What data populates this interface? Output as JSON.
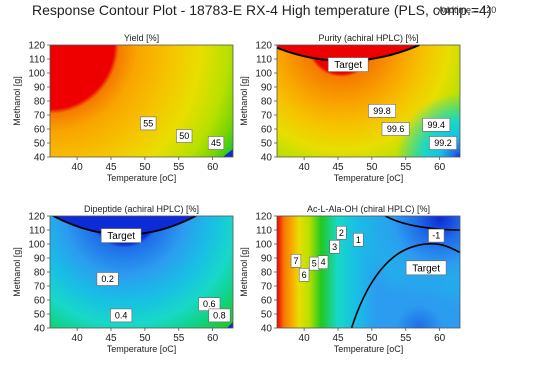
{
  "header": {
    "title": "Response Contour Plot - 18783-E RX-4 High temperature (PLS, comp.=4)",
    "annotation": "Addtime = 120"
  },
  "colors": {
    "red": "#ee0000",
    "orange": "#f57a00",
    "orange_light": "#f9a400",
    "yellow_orange": "#f6c200",
    "yellow": "#e8de00",
    "yellow_green": "#b8e000",
    "green_light": "#7ad400",
    "green": "#22c822",
    "green_cyan": "#10d27a",
    "cyan": "#18d8c8",
    "sky": "#19bde6",
    "light_blue": "#2c9cf0",
    "blue": "#1f6de8",
    "navy": "#0d2bd6",
    "black_line": "#000000"
  },
  "chart_data": [
    {
      "type": "contour",
      "title": "Yield [%]",
      "xlabel": "Temperature [oC]",
      "ylabel": "Methanol [g]",
      "xlim": [
        36,
        63
      ],
      "ylim": [
        40,
        120
      ],
      "xticks": [
        40,
        45,
        50,
        55,
        60
      ],
      "yticks": [
        40,
        50,
        60,
        70,
        80,
        90,
        100,
        110,
        120
      ],
      "xtick_labels": [
        "40",
        "45",
        "50",
        "55",
        "60"
      ],
      "ytick_labels": [
        "40",
        "50",
        "60",
        "70",
        "80",
        "90",
        "100",
        "110",
        "120"
      ],
      "contour_labels": [
        {
          "text": "55",
          "x": 50.5,
          "y": 64
        },
        {
          "text": "50",
          "x": 55.8,
          "y": 55
        },
        {
          "text": "45",
          "x": 60.5,
          "y": 50
        }
      ],
      "target_region": null
    },
    {
      "type": "contour",
      "title": "Purity (achiral HPLC) [%]",
      "xlabel": "Temperature [oC]",
      "ylabel": "Methanol [g]",
      "xlim": [
        36,
        63
      ],
      "ylim": [
        40,
        120
      ],
      "xticks": [
        40,
        45,
        50,
        55,
        60
      ],
      "yticks": [
        40,
        50,
        60,
        70,
        80,
        90,
        100,
        110,
        120
      ],
      "xtick_labels": [
        "40",
        "45",
        "50",
        "55",
        "60"
      ],
      "ytick_labels": [
        "40",
        "50",
        "60",
        "70",
        "80",
        "90",
        "100",
        "110",
        "120"
      ],
      "contour_labels": [
        {
          "text": "Target",
          "x": 46.5,
          "y": 106
        },
        {
          "text": "99.8",
          "x": 51.5,
          "y": 73
        },
        {
          "text": "99.6",
          "x": 53.5,
          "y": 60
        },
        {
          "text": "99.4",
          "x": 59.5,
          "y": 63
        },
        {
          "text": "99.2",
          "x": 60.5,
          "y": 50
        }
      ],
      "target_region": {
        "x_center": 46.0,
        "x_half_width": 11.0,
        "y_bottom": 108,
        "y_top": 120
      }
    },
    {
      "type": "contour",
      "title": "Dipeptide (achiral HPLC) [%]",
      "xlabel": "Temperature [oC]",
      "ylabel": "Methanol [g]",
      "xlim": [
        36,
        63
      ],
      "ylim": [
        40,
        120
      ],
      "xticks": [
        40,
        45,
        50,
        55,
        60
      ],
      "yticks": [
        40,
        50,
        60,
        70,
        80,
        90,
        100,
        110,
        120
      ],
      "xtick_labels": [
        "40",
        "45",
        "50",
        "55",
        "60"
      ],
      "ytick_labels": [
        "40",
        "50",
        "60",
        "70",
        "80",
        "90",
        "100",
        "110",
        "120"
      ],
      "contour_labels": [
        {
          "text": "Target",
          "x": 46.5,
          "y": 106
        },
        {
          "text": "0.2",
          "x": 44.5,
          "y": 75
        },
        {
          "text": "0.4",
          "x": 46.5,
          "y": 49
        },
        {
          "text": "0.6",
          "x": 59.5,
          "y": 57
        },
        {
          "text": "0.8",
          "x": 61,
          "y": 49
        }
      ],
      "target_region": {
        "x_center": 47.0,
        "x_half_width": 10.5,
        "y_bottom": 106,
        "y_top": 120
      }
    },
    {
      "type": "contour",
      "title": "Ac-L-Ala-OH (chiral HPLC) [%]",
      "xlabel": "Temperature [oC]",
      "ylabel": "Methanol [g]",
      "xlim": [
        36,
        63
      ],
      "ylim": [
        40,
        120
      ],
      "xticks": [
        40,
        45,
        50,
        55,
        60
      ],
      "yticks": [
        40,
        50,
        60,
        70,
        80,
        90,
        100,
        110,
        120
      ],
      "xtick_labels": [
        "40",
        "45",
        "50",
        "55",
        "60"
      ],
      "ytick_labels": [
        "40",
        "50",
        "60",
        "70",
        "80",
        "90",
        "100",
        "110",
        "120"
      ],
      "contour_labels": [
        {
          "text": "7",
          "x": 38.8,
          "y": 88
        },
        {
          "text": "6",
          "x": 40.0,
          "y": 78
        },
        {
          "text": "5",
          "x": 41.5,
          "y": 86
        },
        {
          "text": "4",
          "x": 42.8,
          "y": 87
        },
        {
          "text": "3",
          "x": 44.5,
          "y": 98
        },
        {
          "text": "2",
          "x": 45.5,
          "y": 108
        },
        {
          "text": "1",
          "x": 48.0,
          "y": 103
        },
        {
          "text": "-1",
          "x": 59.5,
          "y": 106
        },
        {
          "text": "Target",
          "x": 58.0,
          "y": 83
        }
      ],
      "target_region": null
    }
  ]
}
